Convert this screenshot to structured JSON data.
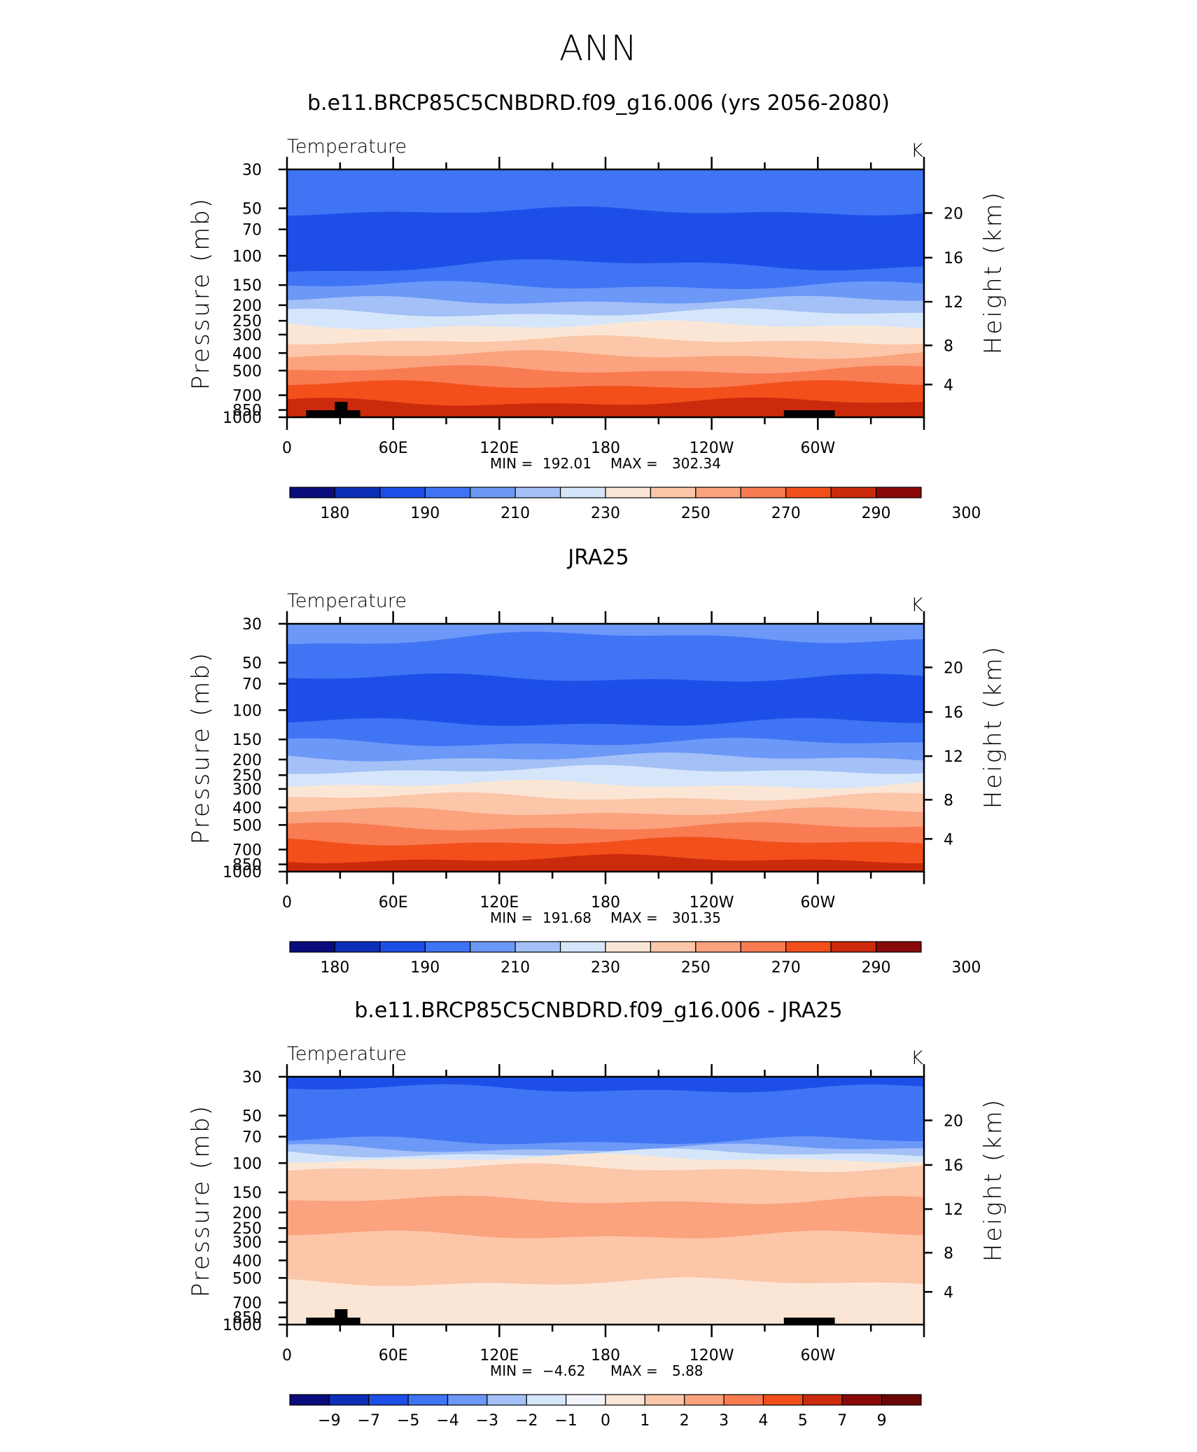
{
  "page": {
    "title": "ANN"
  },
  "chart_data": [
    {
      "type": "heatmap",
      "title": "b.e11.BRCP85C5CNBDRD.f09_g16.006 (yrs 2056-2080)",
      "subtitle": "Temperature",
      "units": "K",
      "ylabel": "Pressure (mb)",
      "y2label": "Height (km)",
      "y_ticks": [
        "30",
        "50",
        "70",
        "100",
        "150",
        "200",
        "250",
        "300",
        "400",
        "500",
        "700",
        "850",
        "1000"
      ],
      "y2_ticks": [
        "20",
        "16",
        "12",
        "8",
        "4"
      ],
      "x_ticks": [
        "0",
        "60E",
        "120E",
        "180",
        "120W",
        "60W"
      ],
      "stats": {
        "min_label": "MIN =",
        "min": "192.01",
        "max_label": "MAX =",
        "max": "302.34"
      },
      "colorbar": {
        "labels": [
          "180",
          "190",
          "210",
          "230",
          "250",
          "270",
          "290",
          "300"
        ],
        "colors": [
          "#0a0c7e",
          "#0d2fb8",
          "#1d4fe8",
          "#3f74f5",
          "#6c98f7",
          "#a3c0f7",
          "#d6e6fa",
          "#fbe6d6",
          "#fcc6a8",
          "#fba27e",
          "#f97b52",
          "#f24f1b",
          "#cc2a0c",
          "#8a0a0a"
        ]
      }
    },
    {
      "type": "heatmap",
      "title": "JRA25",
      "subtitle": "Temperature",
      "units": "K",
      "ylabel": "Pressure (mb)",
      "y2label": "Height (km)",
      "y_ticks": [
        "30",
        "50",
        "70",
        "100",
        "150",
        "200",
        "250",
        "300",
        "400",
        "500",
        "700",
        "850",
        "1000"
      ],
      "y2_ticks": [
        "20",
        "16",
        "12",
        "8",
        "4"
      ],
      "x_ticks": [
        "0",
        "60E",
        "120E",
        "180",
        "120W",
        "60W"
      ],
      "stats": {
        "min_label": "MIN =",
        "min": "191.68",
        "max_label": "MAX =",
        "max": "301.35"
      },
      "colorbar": {
        "labels": [
          "180",
          "190",
          "210",
          "230",
          "250",
          "270",
          "290",
          "300"
        ],
        "colors": [
          "#0a0c7e",
          "#0d2fb8",
          "#1d4fe8",
          "#3f74f5",
          "#6c98f7",
          "#a3c0f7",
          "#d6e6fa",
          "#fbe6d6",
          "#fcc6a8",
          "#fba27e",
          "#f97b52",
          "#f24f1b",
          "#cc2a0c",
          "#8a0a0a"
        ]
      }
    },
    {
      "type": "heatmap",
      "title": "b.e11.BRCP85C5CNBDRD.f09_g16.006 - JRA25",
      "subtitle": "Temperature",
      "units": "K",
      "ylabel": "Pressure (mb)",
      "y2label": "Height (km)",
      "y_ticks": [
        "30",
        "50",
        "70",
        "100",
        "150",
        "200",
        "250",
        "300",
        "400",
        "500",
        "700",
        "850",
        "1000"
      ],
      "y2_ticks": [
        "20",
        "16",
        "12",
        "8",
        "4"
      ],
      "x_ticks": [
        "0",
        "60E",
        "120E",
        "180",
        "120W",
        "60W"
      ],
      "stats": {
        "min_label": "MIN =",
        "min": "−4.62",
        "max_label": "MAX =",
        "max": "5.88"
      },
      "colorbar": {
        "labels": [
          "−9",
          "−7",
          "−5",
          "−4",
          "−3",
          "−2",
          "−1",
          "0",
          "1",
          "2",
          "3",
          "4",
          "5",
          "7",
          "9"
        ],
        "colors": [
          "#0a0c7e",
          "#0d2fb8",
          "#1d4fe8",
          "#3f74f5",
          "#6c98f7",
          "#a3c0f7",
          "#d6e6fa",
          "#f2f4fb",
          "#fbe6d6",
          "#fcc6a8",
          "#fba27e",
          "#f97b52",
          "#f24f1b",
          "#cc2a0c",
          "#8a0a0a",
          "#6a0606"
        ]
      }
    }
  ]
}
